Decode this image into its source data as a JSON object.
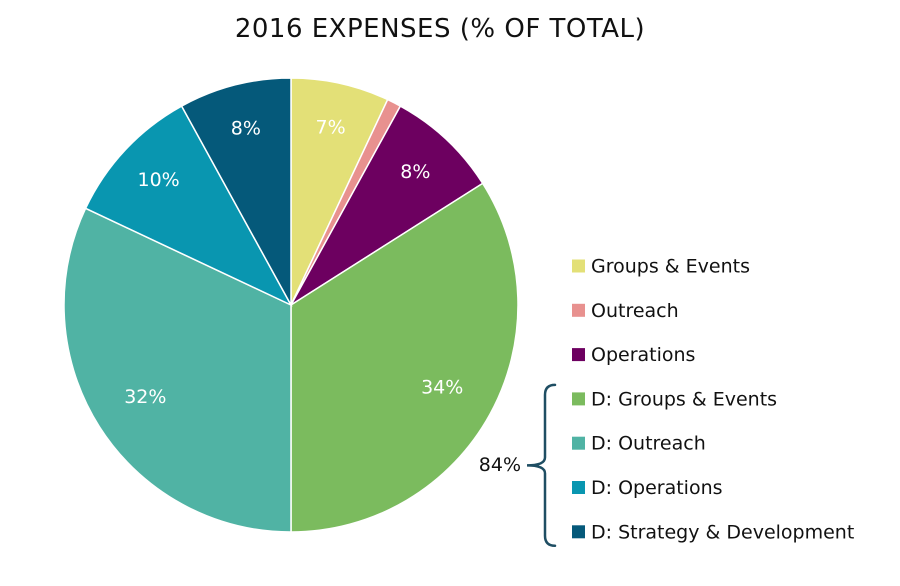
{
  "chart_data": {
    "type": "pie",
    "title": "2016 EXPENSES (% OF TOTAL)",
    "slices": [
      {
        "name": "Groups & Events",
        "value": 7,
        "label": "7%",
        "color": "#e3e077",
        "label_color": "#ffffff"
      },
      {
        "name": "Outreach",
        "value": 1,
        "label": "",
        "color": "#e8918f",
        "label_color": "#ffffff"
      },
      {
        "name": "Operations",
        "value": 8,
        "label": "8%",
        "color": "#6d0060",
        "label_color": "#ffffff"
      },
      {
        "name": "D: Groups & Events",
        "value": 34,
        "label": "34%",
        "color": "#7bbb5e",
        "label_color": "#ffffff"
      },
      {
        "name": "D: Outreach",
        "value": 32,
        "label": "32%",
        "color": "#50b3a4",
        "label_color": "#ffffff"
      },
      {
        "name": "D: Operations",
        "value": 10,
        "label": "10%",
        "color": "#0996b0",
        "label_color": "#ffffff"
      },
      {
        "name": "D: Strategy & Development",
        "value": 8,
        "label": "8%",
        "color": "#05597a",
        "label_color": "#ffffff"
      }
    ],
    "legend_position": "right",
    "bracket": {
      "label": "84%",
      "covers": [
        "D: Groups & Events",
        "D: Outreach",
        "D: Operations",
        "D: Strategy & Development"
      ],
      "color": "#1f4e63"
    }
  }
}
